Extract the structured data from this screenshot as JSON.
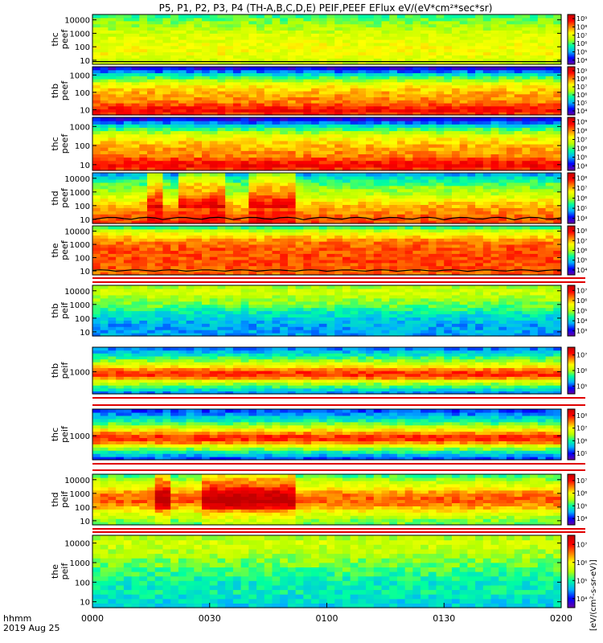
{
  "chart_data": {
    "type": "heatmap",
    "title": "P5, P1, P2, P3, P4 (TH-A,B,C,D,E) PEIF,PEEF EFlux eV/(eV*cm²*sec*sr)",
    "time_axis": {
      "ticks": [
        "0000",
        "0030",
        "0100",
        "0130",
        "0200"
      ],
      "corner_label": "hhmm",
      "date_label": "2019 Aug 25"
    },
    "energy_scale": "log",
    "colorscale": [
      "#6a00a0",
      "#0000ff",
      "#00b0ff",
      "#00ffa0",
      "#b8ff00",
      "#ffff00",
      "#ff8000",
      "#ff0000",
      "#c00000"
    ],
    "colorbar_label": "[eV/(cm²-s-sr-eV)]",
    "panels": [
      {
        "label1": "thc",
        "label2": "peef",
        "yticks": [
          "10000",
          "1000",
          "100",
          "10"
        ],
        "ylim": [
          5,
          25000
        ],
        "cbar_ticks": [
          "10⁴",
          "10⁵",
          "10⁶",
          "10⁷",
          "10⁸",
          "10⁹"
        ],
        "profile": [
          [
            10,
            0.55
          ],
          [
            30,
            0.6
          ],
          [
            100,
            0.6
          ],
          [
            300,
            0.58
          ],
          [
            1000,
            0.55
          ],
          [
            3000,
            0.5
          ],
          [
            10000,
            0.45
          ],
          [
            20000,
            0.4
          ]
        ],
        "contour": [
          8,
          8
        ]
      },
      {
        "label1": "thb",
        "label2": "peef",
        "yticks": [
          "1000",
          "100",
          "10"
        ],
        "ylim": [
          5,
          3000
        ],
        "cbar_ticks": [
          "10⁴",
          "10⁵",
          "10⁶",
          "10⁷",
          "10⁸",
          "10⁹"
        ],
        "profile": [
          [
            5,
            0.8
          ],
          [
            10,
            0.9
          ],
          [
            30,
            0.75
          ],
          [
            100,
            0.7
          ],
          [
            300,
            0.6
          ],
          [
            1000,
            0.35
          ],
          [
            2000,
            0.15
          ],
          [
            3000,
            0.05
          ]
        ]
      },
      {
        "label1": "thc",
        "label2": "peef",
        "yticks": [
          "1000",
          "100",
          "10"
        ],
        "ylim": [
          5,
          3000
        ],
        "cbar_ticks": [
          "10⁴",
          "10⁵",
          "10⁶",
          "10⁷",
          "10⁸",
          "10⁹"
        ],
        "profile": [
          [
            5,
            0.8
          ],
          [
            10,
            0.9
          ],
          [
            30,
            0.75
          ],
          [
            100,
            0.7
          ],
          [
            300,
            0.6
          ],
          [
            1000,
            0.35
          ],
          [
            2000,
            0.15
          ],
          [
            3000,
            0.05
          ]
        ]
      },
      {
        "label1": "thd",
        "label2": "peef",
        "yticks": [
          "10000",
          "1000",
          "100",
          "10"
        ],
        "ylim": [
          5,
          25000
        ],
        "cbar_ticks": [
          "10⁴",
          "10⁵",
          "10⁶",
          "10⁷",
          "10⁸"
        ],
        "profile": [
          [
            10,
            0.8
          ],
          [
            30,
            0.75
          ],
          [
            100,
            0.7
          ],
          [
            300,
            0.6
          ],
          [
            1000,
            0.5
          ],
          [
            3000,
            0.45
          ],
          [
            10000,
            0.35
          ],
          [
            20000,
            0.25
          ]
        ],
        "enhance": [
          [
            0.11,
            0.14
          ],
          [
            0.17,
            0.27
          ],
          [
            0.33,
            0.43
          ]
        ],
        "contour": [
          9,
          14
        ]
      },
      {
        "label1": "the",
        "label2": "peef",
        "yticks": [
          "10000",
          "1000",
          "100",
          "10"
        ],
        "ylim": [
          5,
          25000
        ],
        "cbar_ticks": [
          "10⁴",
          "10⁵",
          "10⁶",
          "10⁷",
          "10⁸"
        ],
        "profile": [
          [
            10,
            0.78
          ],
          [
            30,
            0.8
          ],
          [
            100,
            0.8
          ],
          [
            300,
            0.8
          ],
          [
            1000,
            0.78
          ],
          [
            3000,
            0.7
          ],
          [
            10000,
            0.55
          ],
          [
            20000,
            0.4
          ]
        ],
        "contour": [
          9,
          12
        ]
      },
      {
        "label1": "thb",
        "label2": "peif",
        "yticks": [
          "10000",
          "1000",
          "100",
          "10"
        ],
        "ylim": [
          5,
          25000
        ],
        "cbar_ticks": [
          "10³",
          "10⁴",
          "10⁵",
          "10⁶",
          "10⁷"
        ],
        "profile": [
          [
            10,
            0.25
          ],
          [
            30,
            0.25
          ],
          [
            100,
            0.3
          ],
          [
            300,
            0.35
          ],
          [
            1000,
            0.45
          ],
          [
            3000,
            0.5
          ],
          [
            10000,
            0.55
          ],
          [
            20000,
            0.5
          ]
        ]
      },
      {
        "label1": "thb",
        "label2": "peif",
        "yticks": [
          "1000"
        ],
        "ylim": [
          200,
          6000
        ],
        "cbar_ticks": [
          "10⁵",
          "10⁶",
          "10⁷"
        ],
        "profile": [
          [
            200,
            0.2
          ],
          [
            300,
            0.35
          ],
          [
            500,
            0.55
          ],
          [
            700,
            0.8
          ],
          [
            900,
            0.85
          ],
          [
            1200,
            0.75
          ],
          [
            1600,
            0.6
          ],
          [
            2500,
            0.45
          ],
          [
            4000,
            0.3
          ],
          [
            6000,
            0.2
          ]
        ]
      },
      {
        "label1": "thc",
        "label2": "peif",
        "yticks": [
          "1000"
        ],
        "ylim": [
          200,
          6000
        ],
        "cbar_ticks": [
          "10⁵",
          "10⁶",
          "10⁷",
          "10⁸"
        ],
        "profile": [
          [
            200,
            0.15
          ],
          [
            300,
            0.3
          ],
          [
            500,
            0.55
          ],
          [
            700,
            0.8
          ],
          [
            900,
            0.85
          ],
          [
            1200,
            0.75
          ],
          [
            1600,
            0.6
          ],
          [
            2500,
            0.4
          ],
          [
            4000,
            0.25
          ],
          [
            6000,
            0.15
          ]
        ]
      },
      {
        "label1": "thd",
        "label2": "peif",
        "yticks": [
          "10000",
          "1000",
          "100",
          "10"
        ],
        "ylim": [
          5,
          25000
        ],
        "cbar_ticks": [
          "10⁴",
          "10⁵",
          "10⁶",
          "10⁷"
        ],
        "profile": [
          [
            10,
            0.45
          ],
          [
            30,
            0.55
          ],
          [
            100,
            0.7
          ],
          [
            300,
            0.8
          ],
          [
            1000,
            0.75
          ],
          [
            3000,
            0.6
          ],
          [
            10000,
            0.5
          ],
          [
            20000,
            0.4
          ]
        ],
        "enhance": [
          [
            0.12,
            0.15
          ],
          [
            0.22,
            0.43
          ]
        ]
      },
      {
        "label1": "the",
        "label2": "peif",
        "yticks": [
          "10000",
          "1000",
          "100",
          "10"
        ],
        "ylim": [
          5,
          25000
        ],
        "cbar_ticks": [
          "10⁴",
          "10⁵",
          "10⁶",
          "10⁷"
        ],
        "profile": [
          [
            10,
            0.3
          ],
          [
            30,
            0.35
          ],
          [
            100,
            0.35
          ],
          [
            300,
            0.4
          ],
          [
            1000,
            0.45
          ],
          [
            3000,
            0.5
          ],
          [
            10000,
            0.55
          ],
          [
            20000,
            0.5
          ]
        ]
      }
    ]
  }
}
